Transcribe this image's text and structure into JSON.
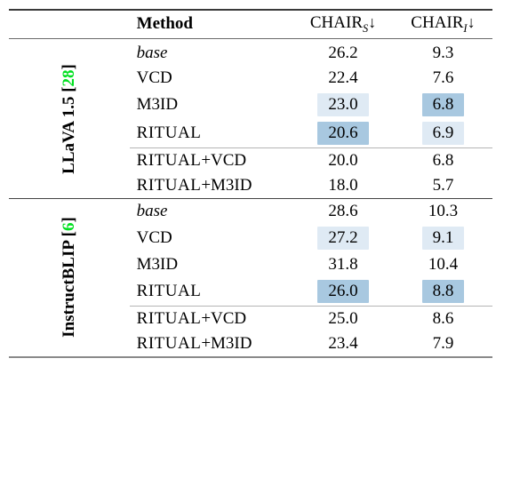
{
  "header": {
    "method": "Method",
    "chair_s": "CHAIR",
    "chair_s_sub": "S",
    "chair_i": "CHAIR",
    "chair_i_sub": "I",
    "arrow": "↓"
  },
  "groups": [
    {
      "label_html": "LLaVA 1.5 [<span class='cite-a'>28</span>]",
      "rows_top": [
        {
          "method_html": "<span class='ital'>base</span>",
          "s": "26.2",
          "i": "9.3",
          "hl_s": "",
          "hl_i": ""
        },
        {
          "method_html": "VCD",
          "s": "22.4",
          "i": "7.6",
          "hl_s": "",
          "hl_i": ""
        },
        {
          "method_html": "M3ID",
          "s": "23.0",
          "i": "6.8",
          "hl_s": "light",
          "hl_i": "dark"
        },
        {
          "method_html": "<span class='ritual'>RITUAL</span>",
          "s": "20.6",
          "i": "6.9",
          "hl_s": "dark",
          "hl_i": "light"
        }
      ],
      "rows_bottom": [
        {
          "method_html": "<span class='ritual'>RITUAL</span>+VCD",
          "s": "20.0",
          "i": "6.8"
        },
        {
          "method_html": "<span class='ritual'>RITUAL</span>+M3ID",
          "s": "18.0",
          "i": "5.7"
        }
      ]
    },
    {
      "label_html": "InstructBLIP [<span class='cite-b'>6</span>]",
      "rows_top": [
        {
          "method_html": "<span class='ital'>base</span>",
          "s": "28.6",
          "i": "10.3",
          "hl_s": "",
          "hl_i": ""
        },
        {
          "method_html": "VCD",
          "s": "27.2",
          "i": "9.1",
          "hl_s": "light",
          "hl_i": "light"
        },
        {
          "method_html": "M3ID",
          "s": "31.8",
          "i": "10.4",
          "hl_s": "",
          "hl_i": ""
        },
        {
          "method_html": "<span class='ritual'>RITUAL</span>",
          "s": "26.0",
          "i": "8.8",
          "hl_s": "dark",
          "hl_i": "dark"
        }
      ],
      "rows_bottom": [
        {
          "method_html": "<span class='ritual'>RITUAL</span>+VCD",
          "s": "25.0",
          "i": "8.6"
        },
        {
          "method_html": "<span class='ritual'>RITUAL</span>+M3ID",
          "s": "23.4",
          "i": "7.9"
        }
      ]
    }
  ]
}
